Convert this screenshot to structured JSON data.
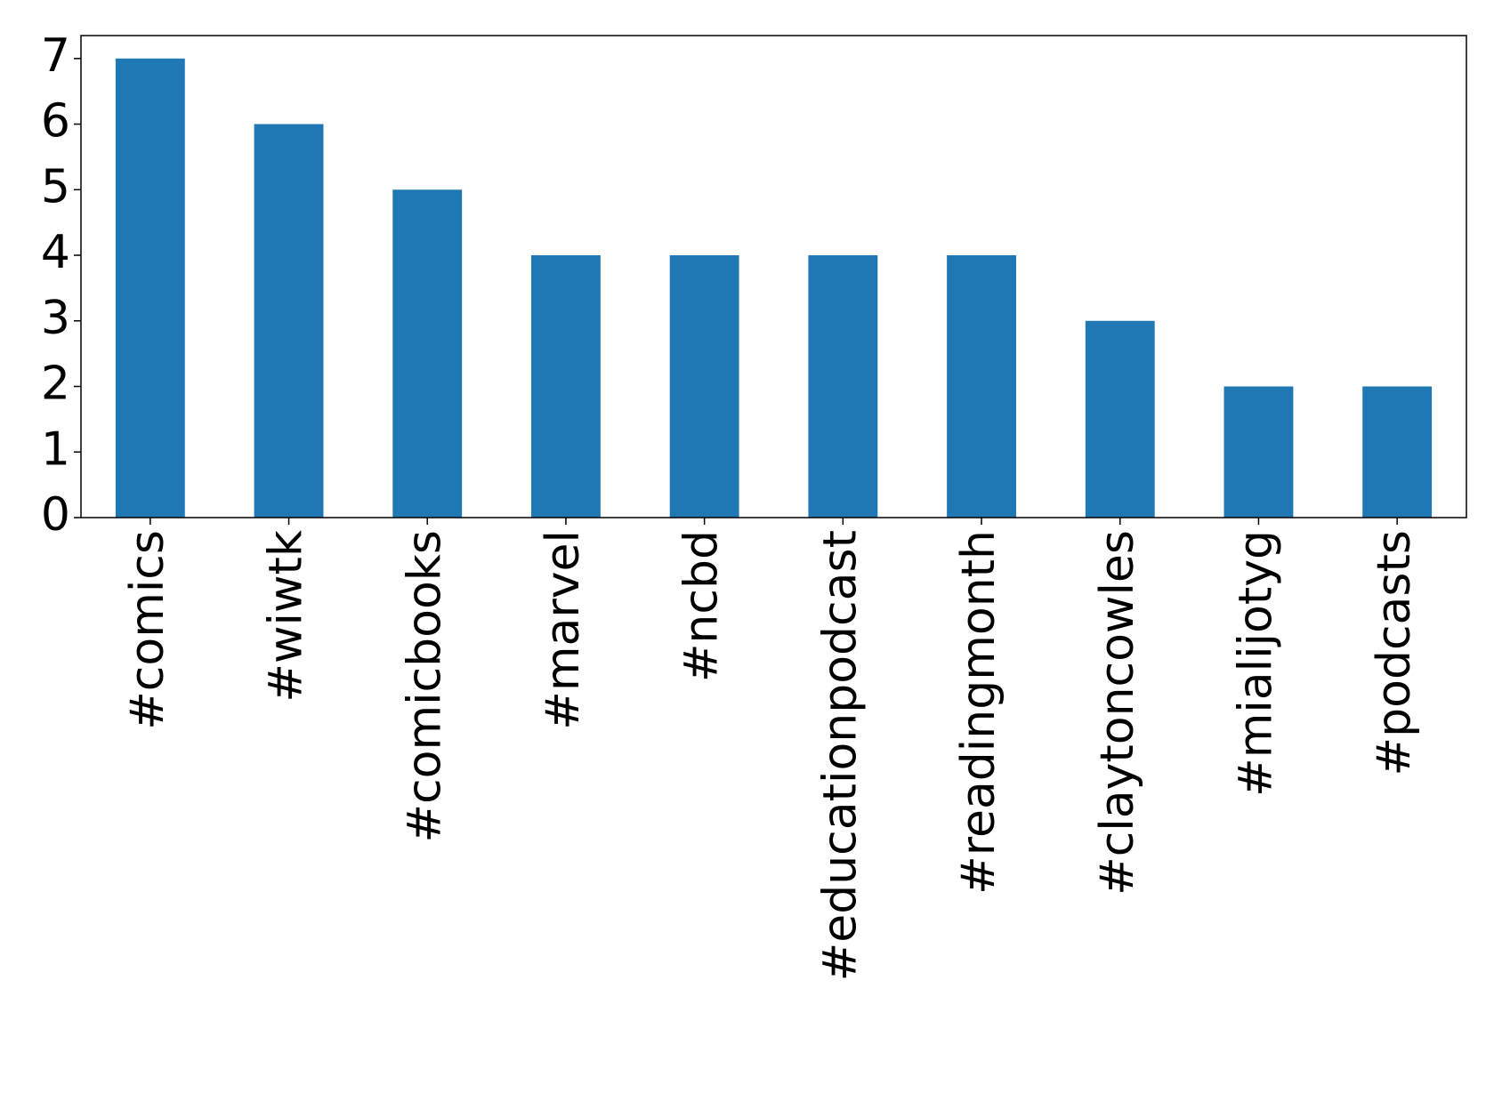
{
  "chart_data": {
    "type": "bar",
    "categories": [
      "#comics",
      "#wiwtk",
      "#comicbooks",
      "#marvel",
      "#ncbd",
      "#educationpodcast",
      "#readingmonth",
      "#claytoncowles",
      "#mialijotyg",
      "#podcasts"
    ],
    "values": [
      7,
      6,
      5,
      4,
      4,
      4,
      4,
      3,
      2,
      2
    ],
    "color": "#1f77b4",
    "ylim": [
      0,
      7.35
    ],
    "yticks": [
      0,
      1,
      2,
      3,
      4,
      5,
      6,
      7
    ]
  }
}
